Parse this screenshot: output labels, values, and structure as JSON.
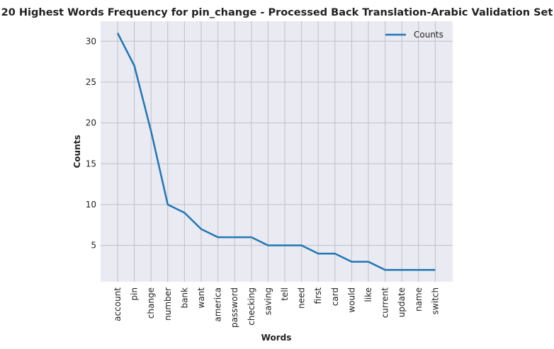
{
  "chart_data": {
    "type": "line",
    "title": "20 Highest Words Frequency for pin_change - Processed Back Translation-Arabic Validation Set",
    "xlabel": "Words",
    "ylabel": "Counts",
    "categories": [
      "account",
      "pin",
      "change",
      "number",
      "bank",
      "want",
      "america",
      "password",
      "checking",
      "saving",
      "tell",
      "need",
      "first",
      "card",
      "would",
      "like",
      "current",
      "update",
      "name",
      "switch"
    ],
    "series": [
      {
        "name": "Counts",
        "values": [
          31,
          27,
          19,
          10,
          9,
          7,
          6,
          6,
          6,
          5,
          5,
          5,
          4,
          4,
          3,
          3,
          2,
          2,
          2,
          2
        ],
        "color": "#1f77b4"
      }
    ],
    "yticks": [
      5,
      10,
      15,
      20,
      25,
      30
    ],
    "ylim": [
      0.55,
      32.45
    ],
    "grid": true,
    "legend": "upper right",
    "background": "#eaeaf2",
    "grid_color": "#c0c0c8"
  }
}
